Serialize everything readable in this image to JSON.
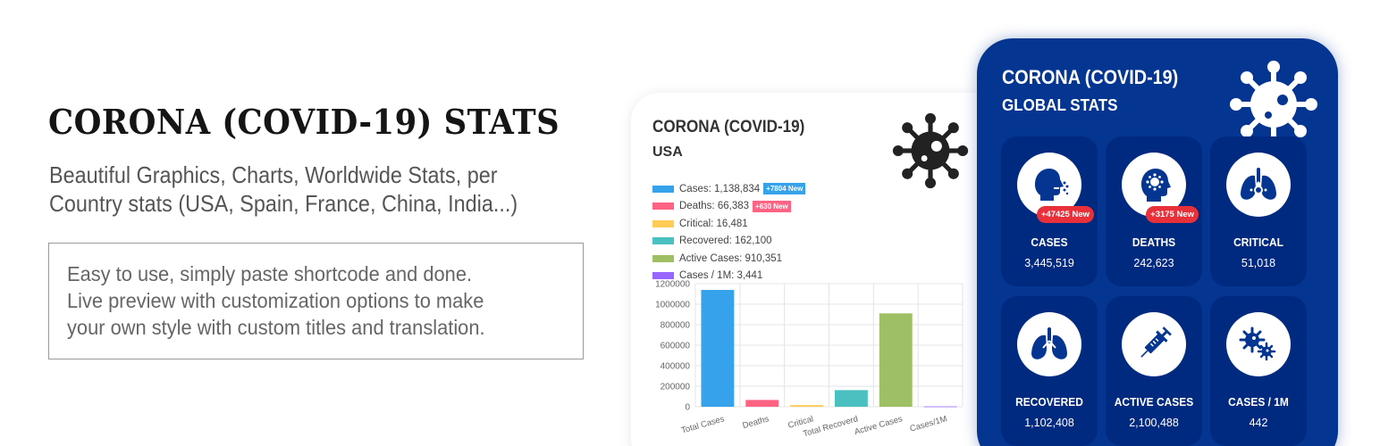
{
  "hero": {
    "title": "CORONA (COVID-19) STATS",
    "subtitle_line1": "Beautiful Graphics, Charts, Worldwide Stats, per",
    "subtitle_line2": "Country stats (USA, Spain, France, China, India...)",
    "box_line1": "Easy to use, simply paste shortcode and done.",
    "box_line2": "Live preview with customization options to make",
    "box_line3": "your own style with custom titles and translation."
  },
  "usa_card": {
    "title": "CORONA (COVID-19)",
    "subtitle": "USA",
    "icon": "virus-icon",
    "legend": [
      {
        "text": "Cases: 1,138,834",
        "color": "#36a2eb",
        "badge": "+7804 New",
        "badge_color": "#36a2eb"
      },
      {
        "text": "Deaths: 66,383",
        "color": "#ff6384",
        "badge": "+630 New",
        "badge_color": "#ff6384"
      },
      {
        "text": "Critical: 16,481",
        "color": "#ffcd56",
        "badge": null,
        "badge_color": null
      },
      {
        "text": "Recovered: 162,100",
        "color": "#4bc0c0",
        "badge": null,
        "badge_color": null
      },
      {
        "text": "Active Cases: 910,351",
        "color": "#9ebf63",
        "badge": null,
        "badge_color": null
      },
      {
        "text": "Cases / 1M: 3,441",
        "color": "#9966ff",
        "badge": null,
        "badge_color": null
      }
    ]
  },
  "chart_data": {
    "type": "bar",
    "categories": [
      "Total Cases",
      "Deaths",
      "Critical",
      "Total Recoverd",
      "Active Cases",
      "Cases/1M"
    ],
    "values": [
      1138834,
      66383,
      16481,
      162100,
      910351,
      3441
    ],
    "colors": [
      "#36a2eb",
      "#ff6384",
      "#ffcd56",
      "#4bc0c0",
      "#9ebf63",
      "#9966ff"
    ],
    "yticks": [
      "0",
      "200000",
      "400000",
      "600000",
      "800000",
      "1000000",
      "1200000"
    ],
    "ylim": [
      0,
      1200000
    ],
    "grid": true,
    "title": "",
    "xlabel": "",
    "ylabel": ""
  },
  "global_card": {
    "title": "CORONA (COVID-19)",
    "subtitle": "GLOBAL STATS",
    "icon": "virus-icon",
    "stats": [
      {
        "label": "CASES",
        "value": "3,445,519",
        "badge": "+47425 New",
        "icon": "cough-icon"
      },
      {
        "label": "DEATHS",
        "value": "242,623",
        "badge": "+3175 New",
        "icon": "head-virus-icon"
      },
      {
        "label": "CRITICAL",
        "value": "51,018",
        "badge": null,
        "icon": "lungs-virus-icon"
      },
      {
        "label": "RECOVERED",
        "value": "1,102,408",
        "badge": null,
        "icon": "lungs-icon"
      },
      {
        "label": "ACTIVE CASES",
        "value": "2,100,488",
        "badge": null,
        "icon": "syringe-icon"
      },
      {
        "label": "CASES / 1M",
        "value": "442",
        "badge": null,
        "icon": "viruses-icon"
      }
    ]
  },
  "colors": {
    "global_bg": "#033591",
    "tile_bg": "#002a80",
    "badge_red": "#e8303a"
  }
}
